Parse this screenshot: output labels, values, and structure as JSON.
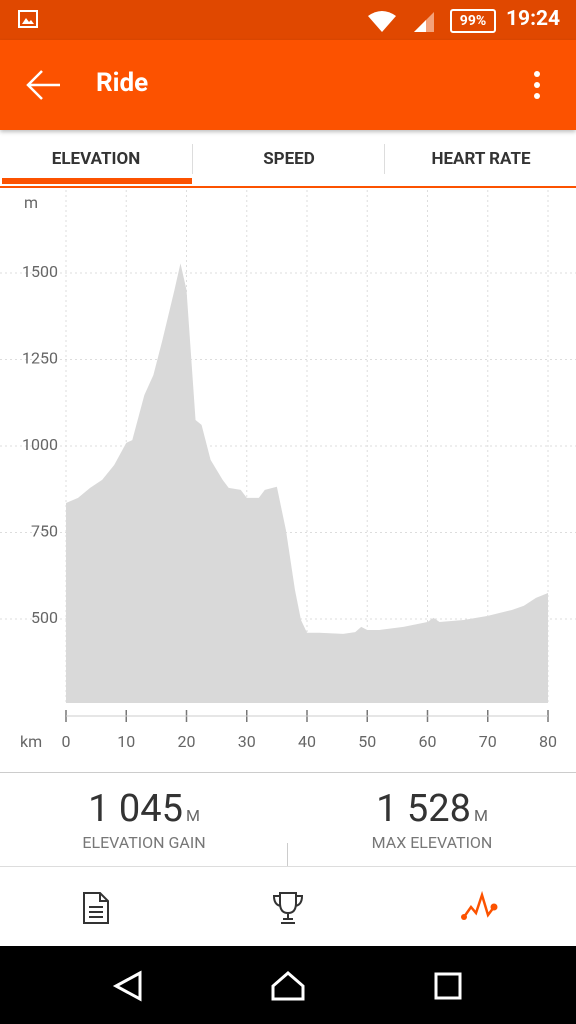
{
  "status_bar": {
    "battery": "99%",
    "time": "19:24"
  },
  "app_bar": {
    "title": "Ride"
  },
  "tabs": [
    "ELEVATION",
    "SPEED",
    "HEART RATE"
  ],
  "chart_data": {
    "type": "area",
    "x_label": "km",
    "y_label": "m",
    "color": "#d9d9d9",
    "grid": true,
    "x": [
      0,
      2,
      4,
      6,
      8,
      10,
      11,
      13,
      14.5,
      16,
      18,
      19,
      20,
      21.5,
      22.5,
      24,
      26,
      27,
      29,
      30,
      32,
      33,
      35,
      36.5,
      38,
      39,
      40,
      42,
      46,
      48,
      49,
      50,
      52,
      56,
      60,
      61,
      62,
      66,
      70,
      74,
      76,
      78,
      80
    ],
    "values": [
      835,
      850,
      879,
      902,
      945,
      1009,
      1017,
      1147,
      1205,
      1306,
      1451,
      1528,
      1451,
      1075,
      1061,
      960,
      902,
      879,
      873,
      850,
      850,
      873,
      882,
      757,
      584,
      497,
      460,
      460,
      457,
      462,
      477,
      468,
      468,
      477,
      491,
      503,
      491,
      497,
      509,
      526,
      538,
      561,
      575
    ],
    "xlim": [
      0,
      80
    ],
    "xticks": [
      0,
      10,
      20,
      30,
      40,
      50,
      60,
      70,
      80
    ],
    "ylim": [
      257,
      1740
    ],
    "yticks": [
      500,
      750,
      1000,
      1250,
      1500
    ]
  },
  "stats": [
    {
      "value": "1 045",
      "unit": "M",
      "label": "ELEVATION GAIN"
    },
    {
      "value": "1 528",
      "unit": "M",
      "label": "MAX ELEVATION"
    }
  ]
}
